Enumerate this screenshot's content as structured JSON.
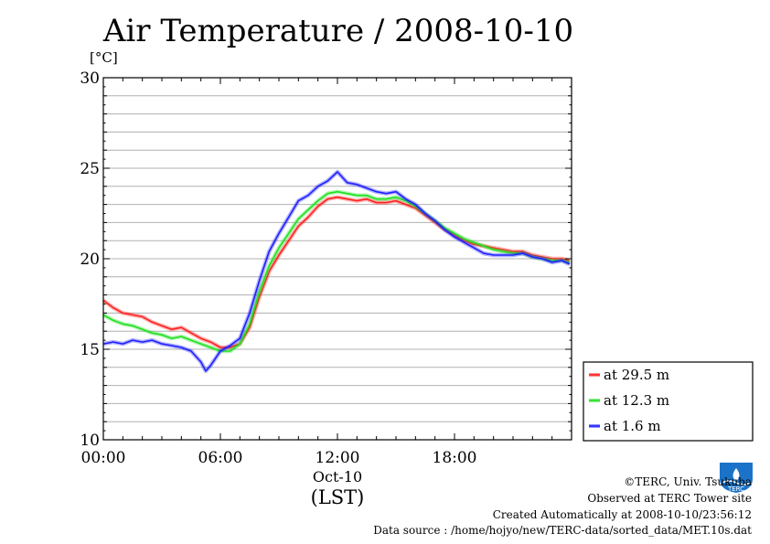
{
  "chart_data": {
    "type": "line",
    "title": "Air Temperature / 2008-10-10",
    "ylabel": "[°C]",
    "ylim": [
      10,
      30
    ],
    "yticks": [
      "10",
      "15",
      "20",
      "25",
      "30"
    ],
    "xlim_hours": [
      0,
      24
    ],
    "xticks": [
      {
        "hour": 0,
        "label": "00:00"
      },
      {
        "hour": 6,
        "label": "06:00"
      },
      {
        "hour": 12,
        "label": "12:00"
      },
      {
        "hour": 18,
        "label": "18:00"
      }
    ],
    "date_label": "Oct-10",
    "xlabel": "(LST)",
    "grid": true,
    "legend_position": "bottom-right",
    "series": [
      {
        "name": "at 29.5 m",
        "color": "#ff2020",
        "hours": [
          0,
          0.5,
          1,
          1.5,
          2,
          2.5,
          3,
          3.5,
          4,
          4.5,
          5,
          5.5,
          6,
          6.5,
          7,
          7.5,
          8,
          8.5,
          9,
          9.5,
          10,
          10.5,
          11,
          11.5,
          12,
          12.5,
          13,
          13.5,
          14,
          14.5,
          15,
          15.5,
          16,
          16.5,
          17,
          17.5,
          18,
          18.5,
          19,
          19.5,
          20,
          20.5,
          21,
          21.5,
          22,
          22.5,
          23,
          23.5,
          23.9
        ],
        "values": [
          17.7,
          17.3,
          17.0,
          16.9,
          16.8,
          16.5,
          16.3,
          16.1,
          16.2,
          15.9,
          15.6,
          15.4,
          15.1,
          15.1,
          15.3,
          16.2,
          17.9,
          19.3,
          20.2,
          21.0,
          21.8,
          22.3,
          22.9,
          23.3,
          23.4,
          23.3,
          23.2,
          23.3,
          23.1,
          23.1,
          23.2,
          23.0,
          22.8,
          22.4,
          22.0,
          21.6,
          21.3,
          21.0,
          20.8,
          20.7,
          20.6,
          20.5,
          20.4,
          20.4,
          20.2,
          20.1,
          20.0,
          20.0,
          19.9
        ]
      },
      {
        "name": "at 12.3 m",
        "color": "#20e020",
        "hours": [
          0,
          0.5,
          1,
          1.5,
          2,
          2.5,
          3,
          3.5,
          4,
          4.5,
          5,
          5.5,
          6,
          6.5,
          7,
          7.5,
          8,
          8.5,
          9,
          9.5,
          10,
          10.5,
          11,
          11.5,
          12,
          12.5,
          13,
          13.5,
          14,
          14.5,
          15,
          15.5,
          16,
          16.5,
          17,
          17.5,
          18,
          18.5,
          19,
          19.5,
          20,
          20.5,
          21,
          21.5,
          22,
          22.5,
          23,
          23.5,
          23.9
        ],
        "values": [
          16.9,
          16.6,
          16.4,
          16.3,
          16.1,
          15.9,
          15.8,
          15.6,
          15.7,
          15.5,
          15.3,
          15.1,
          14.9,
          14.9,
          15.3,
          16.4,
          18.2,
          19.6,
          20.6,
          21.4,
          22.2,
          22.7,
          23.2,
          23.6,
          23.7,
          23.6,
          23.5,
          23.5,
          23.3,
          23.3,
          23.4,
          23.2,
          22.9,
          22.5,
          22.1,
          21.7,
          21.4,
          21.1,
          20.9,
          20.7,
          20.5,
          20.4,
          20.3,
          20.3,
          20.1,
          20.0,
          19.9,
          19.9,
          19.8
        ]
      },
      {
        "name": "at 1.6 m",
        "color": "#2020ff",
        "hours": [
          0,
          0.5,
          1,
          1.5,
          2,
          2.5,
          3,
          3.5,
          4,
          4.5,
          5,
          5.25,
          5.5,
          6,
          6.5,
          7,
          7.5,
          8,
          8.5,
          9,
          9.5,
          10,
          10.5,
          11,
          11.5,
          12,
          12.5,
          13,
          13.5,
          14,
          14.5,
          15,
          15.5,
          16,
          16.5,
          17,
          17.5,
          18,
          18.5,
          19,
          19.5,
          20,
          20.5,
          21,
          21.5,
          22,
          22.5,
          23,
          23.5,
          23.9
        ],
        "values": [
          15.3,
          15.4,
          15.3,
          15.5,
          15.4,
          15.5,
          15.3,
          15.2,
          15.1,
          14.9,
          14.3,
          13.8,
          14.1,
          14.9,
          15.2,
          15.6,
          17.0,
          18.8,
          20.4,
          21.4,
          22.3,
          23.2,
          23.5,
          24.0,
          24.3,
          24.8,
          24.2,
          24.1,
          23.9,
          23.7,
          23.6,
          23.7,
          23.3,
          23.0,
          22.5,
          22.1,
          21.6,
          21.2,
          20.9,
          20.6,
          20.3,
          20.2,
          20.2,
          20.2,
          20.3,
          20.1,
          20.0,
          19.8,
          19.9,
          19.7
        ]
      }
    ]
  },
  "footer": {
    "copyright": "©TERC, Univ. Tsukuba",
    "observed": "Observed at TERC Tower site",
    "created": "Created Automatically at 2008-10-10/23:56:12",
    "source": "Data source : /home/hojyo/new/TERC-data/sorted_data/MET.10s.dat"
  },
  "logo": {
    "icon": "terc-logo-icon",
    "text": "TERC",
    "color": "#1a73c9"
  }
}
